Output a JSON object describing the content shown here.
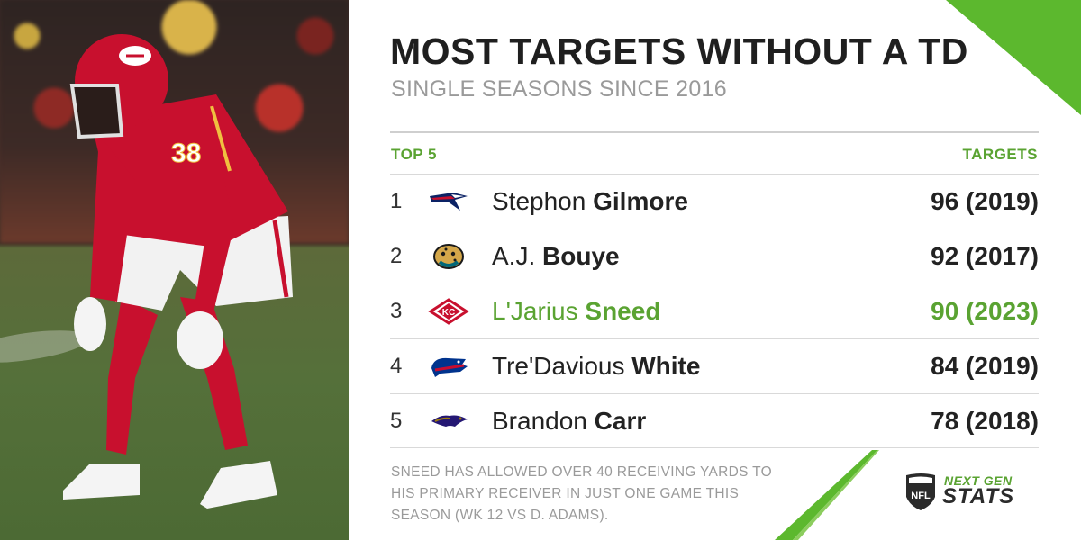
{
  "title": "MOST TARGETS WITHOUT A TD",
  "subtitle": "SINGLE SEASONS SINCE 2016",
  "table": {
    "left_header": "TOP 5",
    "right_header": "TARGETS",
    "rows": [
      {
        "rank": "1",
        "first": "Stephon",
        "last": "Gilmore",
        "value": "96 (2019)",
        "team_icon": "patriots-logo-icon",
        "highlight": false
      },
      {
        "rank": "2",
        "first": "A.J.",
        "last": "Bouye",
        "value": "92 (2017)",
        "team_icon": "jaguars-logo-icon",
        "highlight": false
      },
      {
        "rank": "3",
        "first": "L'Jarius",
        "last": "Sneed",
        "value": "90 (2023)",
        "team_icon": "chiefs-logo-icon",
        "highlight": true
      },
      {
        "rank": "4",
        "first": "Tre'Davious",
        "last": "White",
        "value": "84 (2019)",
        "team_icon": "bills-logo-icon",
        "highlight": false
      },
      {
        "rank": "5",
        "first": "Brandon",
        "last": "Carr",
        "value": "78 (2018)",
        "team_icon": "ravens-logo-icon",
        "highlight": false
      }
    ]
  },
  "footnote": "SNEED HAS ALLOWED OVER 40 RECEIVING YARDS TO HIS PRIMARY RECEIVER IN JUST ONE GAME THIS SEASON (WK 12 VS D. ADAMS).",
  "brand": {
    "nfl": "NFL",
    "next": "NEXT GEN",
    "stats": "STATS"
  },
  "photo": {
    "jersey_number": "38"
  },
  "colors": {
    "accent": "#5aa332",
    "title": "#1f1f1f",
    "muted": "#9a9a9a",
    "chiefs_red": "#c8102e"
  }
}
